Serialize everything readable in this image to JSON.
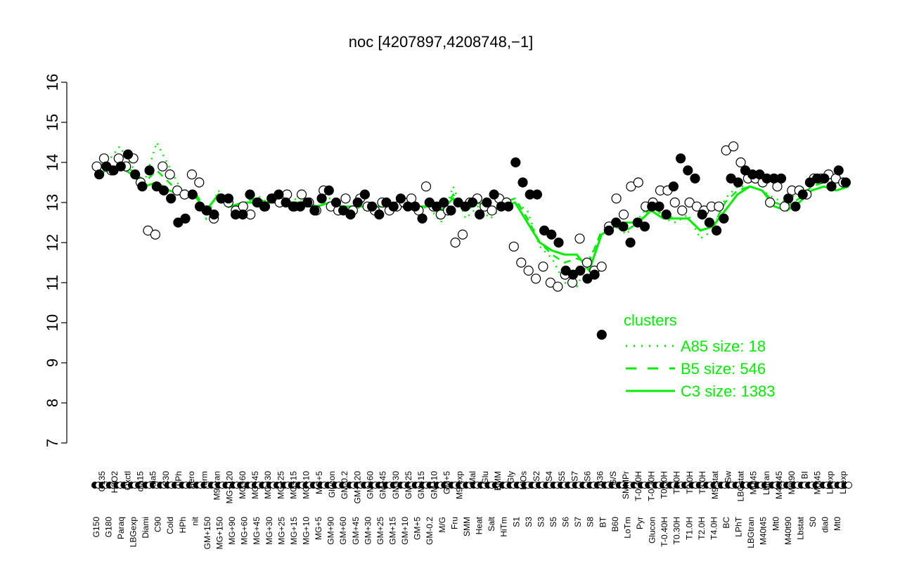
{
  "chart_data": {
    "type": "line",
    "title": "noc [4207897,4208748,−1]",
    "xlabel": "",
    "ylabel": "",
    "ylim": [
      7,
      16
    ],
    "yticks": [
      "7",
      "8",
      "9",
      "10",
      "11",
      "12",
      "13",
      "14",
      "15",
      "16"
    ],
    "x_labels_row1": [
      "G150",
      "G180",
      "Paraq",
      "LBGexp",
      "Diami",
      "C90",
      "Cold",
      "HPh",
      "nit",
      "GM+150",
      "MG+150",
      "MG+90",
      "MG+60",
      "MG+45",
      "MG+30",
      "MG+25",
      "MG+15",
      "MG+10",
      "MG+5",
      "GM+90",
      "GM+60",
      "GM+45",
      "GM+30",
      "GM+25",
      "GM+15",
      "GM+10",
      "GM+5",
      "GM-0.2",
      "M/G",
      "Fru",
      "SMM",
      "Heat",
      "Salt",
      "HiTm",
      "S1",
      "S3",
      "S3",
      "S5",
      "S6",
      "S7",
      "S8",
      "BT",
      "B60",
      "LoTm",
      "Pyr",
      "Glucon",
      "T-0.40H",
      "T0.30H",
      "T1.0H",
      "T2.0H",
      "T4.0H",
      "BC",
      "LPhT",
      "LBGtran",
      "M40t45",
      "Mt0",
      "M40t90",
      "Lbstat",
      "S0",
      "dia0",
      "Mt0"
    ],
    "x_labels_row2": [
      "G135",
      "H2O2",
      "Oxctl",
      "dia15",
      "dia5",
      "C30",
      "LPh",
      "aero",
      "ferm",
      "M9-tran",
      "MG+120",
      "MG+60",
      "MG+45",
      "MG+30",
      "MG+25",
      "MG+15",
      "MG+10",
      "MG+5",
      "Glucon",
      "GM-0.2",
      "GM+120",
      "GM+60",
      "GM+45",
      "GM+30",
      "GM+25",
      "GM+15",
      "GM+10",
      "GM+5",
      "M9-exp",
      "Mal",
      "Glu",
      "BMM",
      "Gly",
      "HiOs",
      "S2",
      "S4",
      "S5",
      "S7",
      "S6",
      "B36",
      "G/S",
      "SMMPr",
      "T-0.40H",
      "T-0.30H",
      "T0.30H",
      "T1.0H",
      "T2.0H",
      "T3.0H",
      "M9-stat",
      "Sw",
      "LBGstat",
      "M0t45",
      "Lbtran",
      "M40t45",
      "M0t90",
      "BI",
      "M0t45",
      "Lbexp",
      "Lbexp"
    ],
    "series": [
      {
        "name": "A85 size: 18",
        "style": "dotted",
        "color": "#00ee00",
        "values": [
          13.9,
          14.0,
          14.4,
          13.9,
          13.5,
          14.5,
          13.9,
          13.3,
          13.3,
          12.6,
          13.3,
          12.8,
          13.0,
          13.2,
          13.0,
          13.0,
          13.1,
          13.0,
          12.9,
          13.1,
          12.9,
          12.9,
          12.8,
          12.9,
          13.0,
          12.9,
          12.8,
          12.9,
          12.5,
          13.4,
          12.6,
          12.9,
          12.6,
          12.9,
          13.0,
          12.8,
          11.9,
          11.6,
          11.0,
          10.9,
          11.6,
          12.2,
          12.5,
          12.2,
          12.6,
          13.0,
          12.6,
          12.5,
          12.7,
          12.1,
          12.3,
          13.1,
          13.4,
          13.4,
          13.3,
          13.1,
          13.0,
          13.3,
          13.5,
          13.6,
          13.5,
          13.5
        ]
      },
      {
        "name": "B5 size: 546",
        "style": "dashed",
        "color": "#00ee00",
        "values": [
          13.7,
          13.9,
          13.9,
          13.8,
          13.5,
          13.8,
          13.5,
          13.2,
          13.3,
          12.8,
          13.2,
          12.9,
          13.0,
          13.1,
          13.0,
          13.0,
          13.0,
          13.0,
          12.9,
          13.0,
          12.9,
          12.9,
          12.9,
          12.9,
          12.9,
          12.9,
          12.9,
          12.9,
          12.7,
          13.2,
          12.8,
          13.0,
          12.8,
          13.0,
          13.1,
          12.6,
          12.0,
          11.7,
          11.5,
          11.6,
          11.5,
          12.3,
          12.4,
          12.3,
          12.5,
          12.9,
          12.7,
          12.6,
          12.6,
          12.3,
          12.4,
          13.0,
          13.3,
          13.4,
          13.3,
          13.0,
          12.9,
          13.1,
          13.4,
          13.5,
          13.4,
          13.5
        ]
      },
      {
        "name": "C3 size: 1383",
        "style": "solid",
        "color": "#00ee00",
        "values": [
          13.7,
          13.8,
          13.9,
          13.7,
          13.4,
          13.5,
          13.3,
          13.2,
          13.2,
          12.8,
          13.2,
          12.9,
          13.0,
          13.0,
          13.0,
          13.0,
          13.0,
          13.0,
          12.9,
          13.0,
          12.9,
          12.9,
          12.9,
          12.9,
          12.9,
          12.9,
          12.9,
          12.9,
          12.8,
          13.1,
          12.8,
          13.0,
          12.8,
          12.9,
          13.0,
          12.5,
          12.0,
          11.8,
          11.7,
          11.7,
          11.3,
          12.2,
          12.4,
          12.5,
          12.5,
          12.8,
          12.6,
          12.6,
          12.6,
          12.3,
          12.4,
          12.8,
          13.2,
          13.4,
          13.3,
          12.9,
          12.8,
          13.0,
          13.3,
          13.4,
          13.3,
          13.4
        ]
      }
    ],
    "points_filled": [
      13.7,
      13.9,
      13.8,
      13.9,
      14.2,
      13.7,
      13.4,
      13.8,
      13.4,
      13.3,
      13.1,
      12.5,
      12.6,
      13.2,
      12.9,
      12.8,
      12.7,
      13.1,
      13.1,
      12.7,
      12.7,
      13.2,
      13.0,
      12.9,
      13.1,
      13.2,
      13.0,
      12.9,
      12.9,
      13.0,
      12.8,
      13.1,
      13.3,
      13.0,
      12.8,
      12.7,
      13.0,
      13.2,
      12.9,
      12.7,
      13.0,
      12.9,
      13.1,
      12.9,
      12.9,
      12.6,
      13.0,
      12.9,
      13.0,
      12.8,
      13.0,
      12.9,
      13.0,
      12.7,
      13.0,
      13.2,
      12.9,
      12.9,
      14.0,
      13.5,
      13.2,
      13.2,
      12.3,
      12.2,
      12.0,
      11.3,
      11.2,
      11.3,
      11.1,
      11.2,
      9.7,
      12.3,
      12.5,
      12.4,
      12.0,
      12.5,
      12.4,
      12.9,
      12.9,
      12.7,
      13.4,
      14.1,
      13.8,
      13.6,
      12.7,
      12.5,
      12.3,
      12.6,
      13.6,
      13.5,
      13.8,
      13.7,
      13.7,
      13.6,
      13.6,
      13.6,
      13.1,
      12.9,
      13.2,
      13.5,
      13.6,
      13.6,
      13.4,
      13.8,
      13.5
    ],
    "points_open": [
      13.9,
      14.1,
      13.8,
      14.1,
      13.9,
      14.1,
      13.5,
      12.3,
      12.2,
      13.9,
      13.7,
      13.3,
      13.2,
      13.7,
      13.5,
      12.8,
      12.6,
      13.1,
      13.0,
      12.8,
      12.9,
      12.7,
      13.0,
      12.9,
      13.1,
      13.0,
      13.2,
      12.9,
      13.2,
      13.0,
      12.8,
      13.3,
      12.9,
      12.8,
      13.1,
      12.8,
      13.1,
      12.9,
      12.8,
      13.0,
      12.8,
      12.9,
      13.0,
      13.1,
      12.8,
      13.4,
      12.9,
      12.7,
      12.8,
      12.0,
      12.2,
      13.0,
      13.1,
      12.9,
      12.8,
      13.1,
      13.0,
      11.9,
      11.5,
      11.3,
      11.1,
      11.4,
      11.0,
      10.9,
      11.2,
      11.0,
      12.1,
      11.5,
      11.3,
      11.4,
      12.4,
      13.1,
      12.7,
      13.4,
      13.5,
      12.9,
      13.0,
      13.3,
      13.3,
      13.0,
      12.8,
      13.0,
      12.9,
      12.8,
      12.9,
      12.9,
      14.3,
      14.4,
      14.0,
      13.6,
      13.6,
      13.5,
      13.0,
      13.4,
      12.9,
      13.3,
      13.3,
      13.2,
      13.6,
      13.6,
      13.7,
      13.6,
      13.5
    ],
    "legend": {
      "title": "clusters",
      "position": "bottom-right",
      "color": "#00ee00",
      "entries": [
        {
          "label": "A85 size: 18",
          "style": "dotted"
        },
        {
          "label": "B5 size: 546",
          "style": "dashed"
        },
        {
          "label": "C3 size: 1383",
          "style": "solid"
        }
      ]
    },
    "grid": false
  }
}
